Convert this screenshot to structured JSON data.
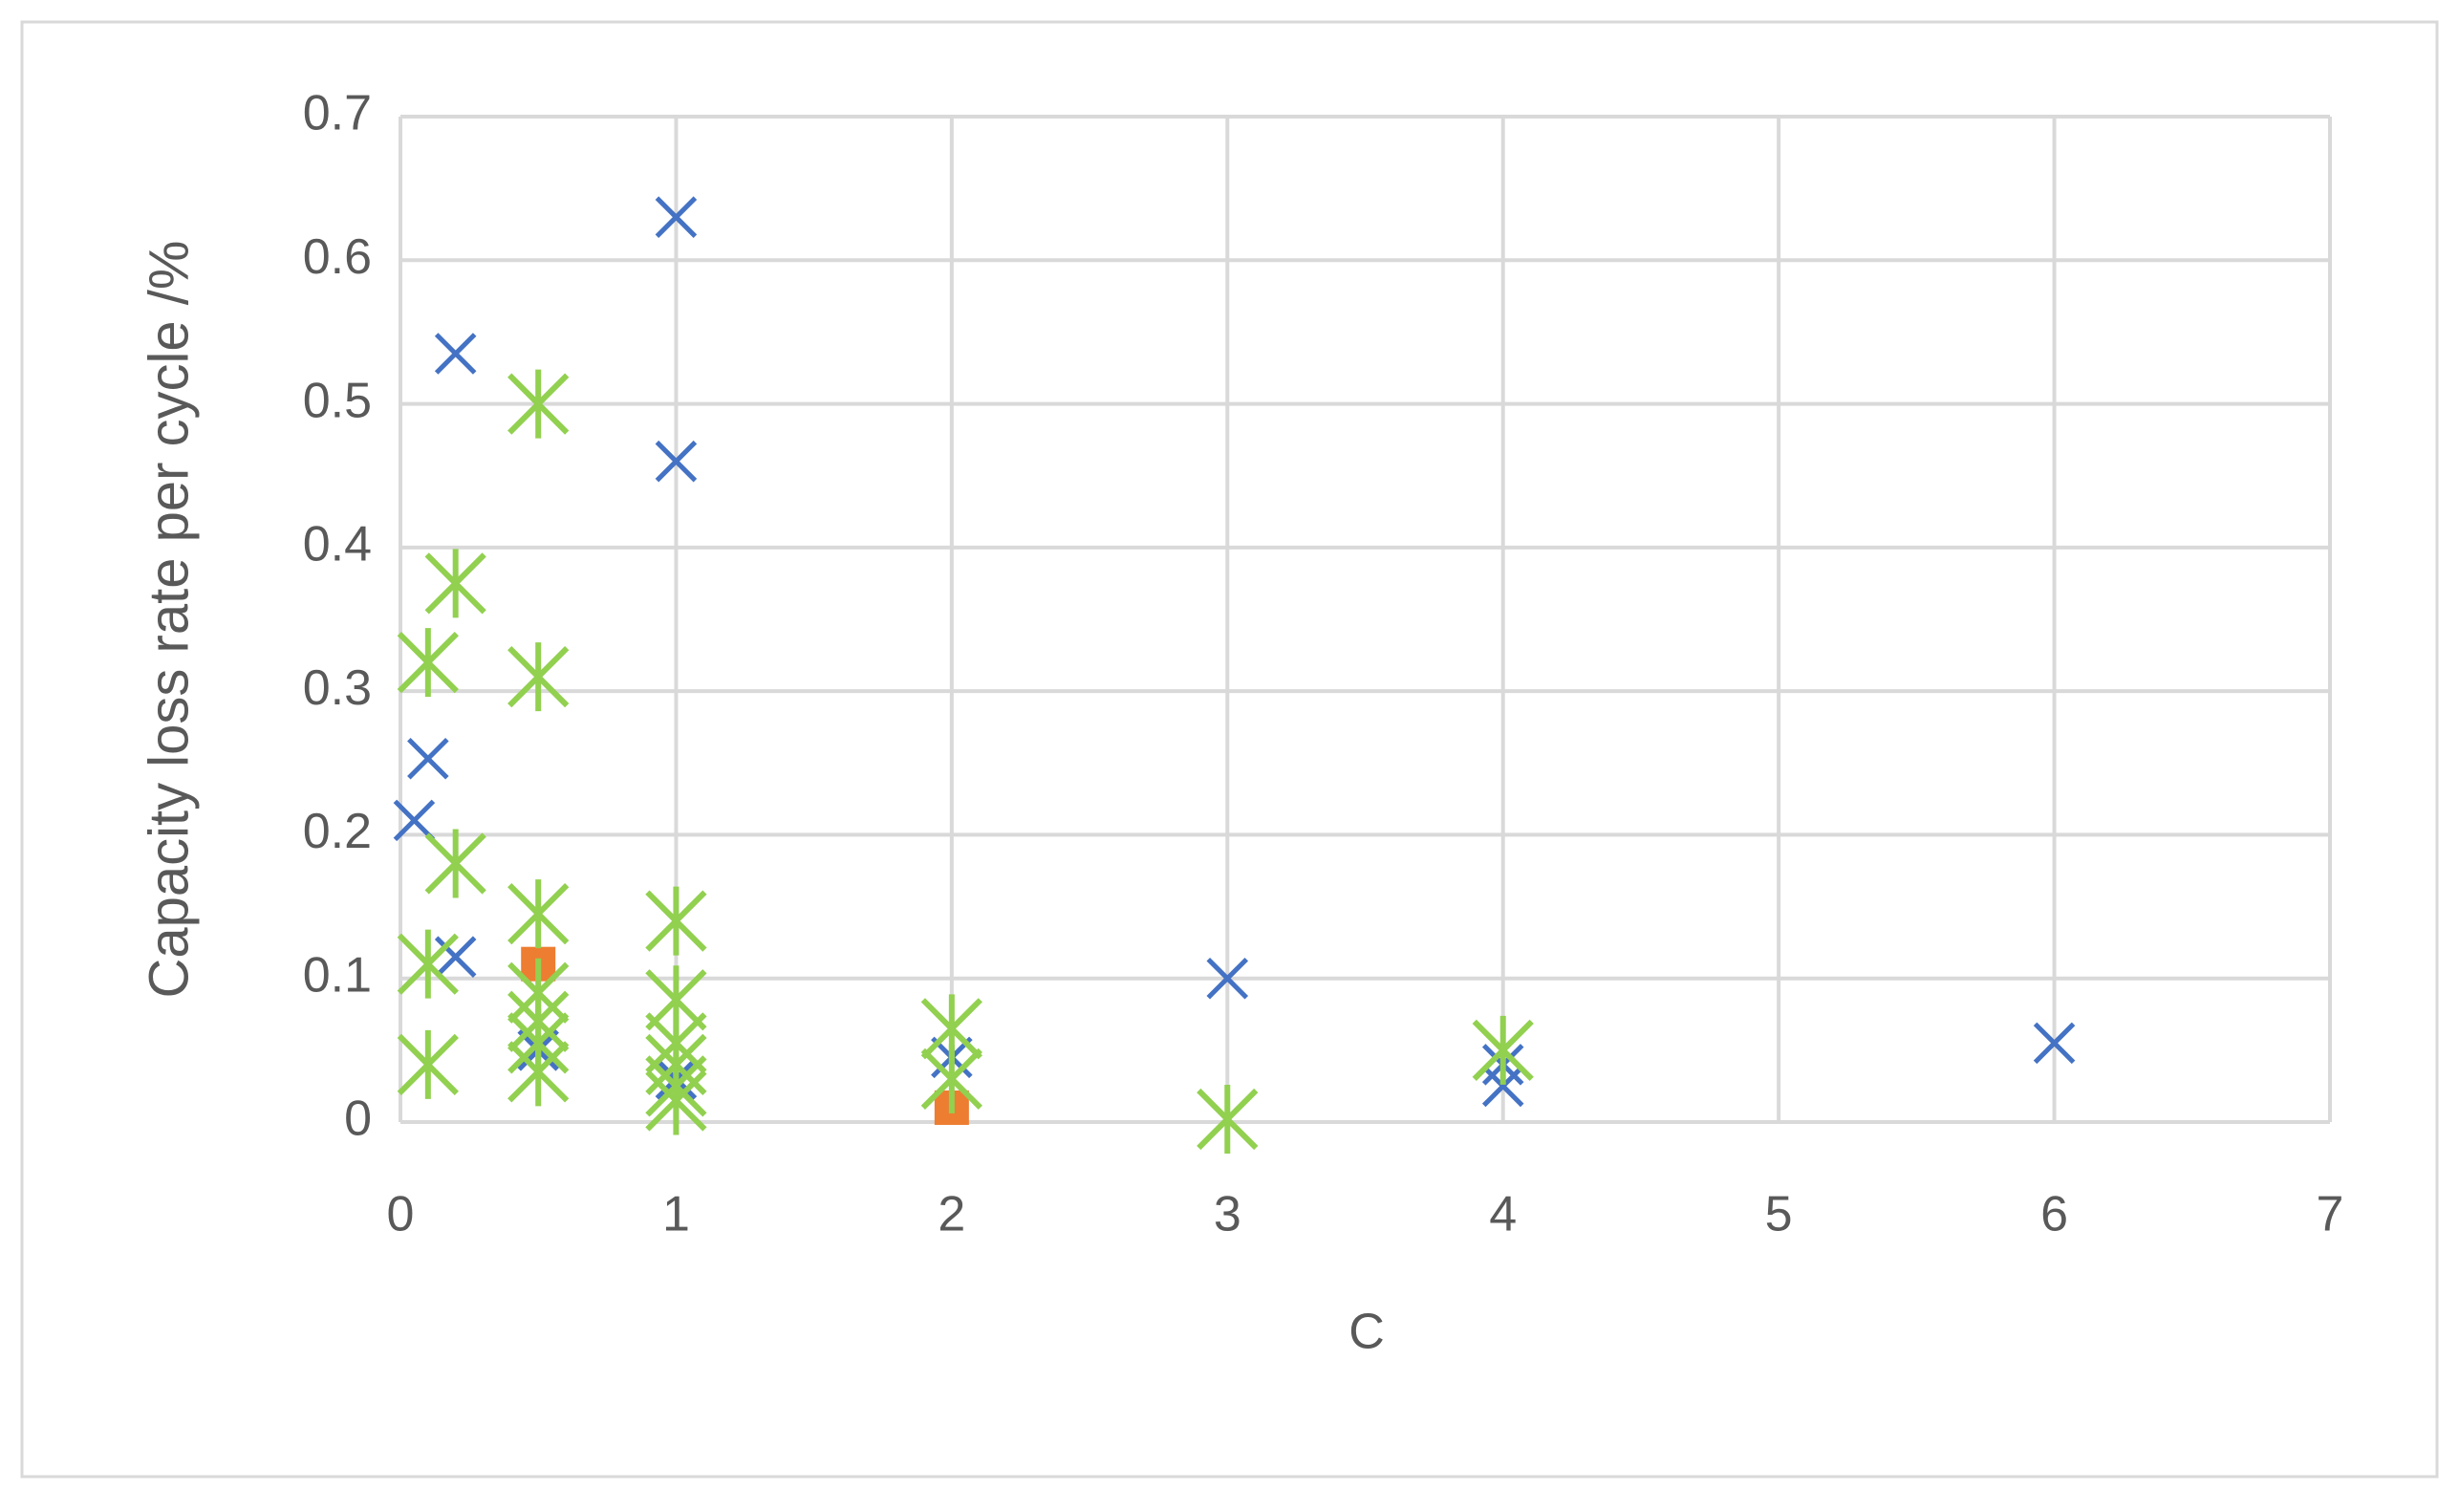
{
  "chart_data": {
    "type": "scatter",
    "x_label": "C",
    "y_label": "Capacity loss rate per cycle /%",
    "xlim": [
      0,
      7
    ],
    "xticks": [
      0,
      1,
      2,
      3,
      4,
      5,
      6,
      7
    ],
    "ylim": [
      0,
      0.7
    ],
    "yticks": [
      0,
      0.1,
      0.2,
      0.3,
      0.4,
      0.5,
      0.6,
      0.7
    ],
    "grid": true,
    "series": [
      {
        "color": "#4472c4",
        "marker": "x",
        "x": [
          0.05,
          0.1,
          0.2,
          0.2,
          0.5,
          0.5,
          1,
          1,
          1,
          2,
          3,
          4,
          4,
          6
        ],
        "values": [
          0.21,
          0.253,
          0.535,
          0.115,
          0.07,
          0.05,
          0.63,
          0.46,
          0.03,
          0.045,
          0.1,
          0.04,
          0.025,
          0.055
        ]
      },
      {
        "color": "#ed7d31",
        "marker": "square",
        "x": [
          0.5,
          2
        ],
        "values": [
          0.11,
          0.01
        ]
      },
      {
        "color": "#92d050",
        "marker": "asterisk",
        "x": [
          0.1,
          0.1,
          0.1,
          0.2,
          0.2,
          0.5,
          0.5,
          0.5,
          0.5,
          0.5,
          0.5,
          0.5,
          1,
          1,
          1,
          1,
          1,
          1,
          2,
          2,
          3,
          4
        ],
        "values": [
          0.32,
          0.11,
          0.04,
          0.375,
          0.18,
          0.5,
          0.31,
          0.145,
          0.09,
          0.07,
          0.055,
          0.035,
          0.14,
          0.085,
          0.055,
          0.04,
          0.025,
          0.015,
          0.065,
          0.03,
          0.002,
          0.05
        ]
      }
    ]
  }
}
